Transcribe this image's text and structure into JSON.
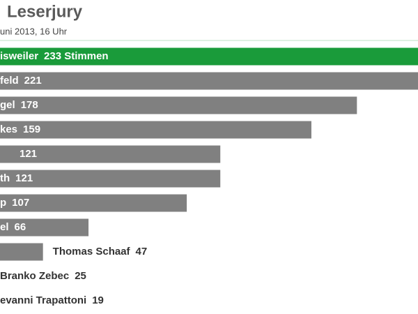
{
  "chart_data": {
    "type": "bar",
    "orientation": "horizontal",
    "title": "Leserjury",
    "subtitle": "uni 2013, 16 Uhr",
    "categories": [
      "isweiler",
      "feld",
      "gel",
      "kes",
      null,
      "th",
      "p",
      "el",
      "Thomas Schaaf",
      "Branko Zebec",
      "evanni Trapattoni"
    ],
    "values": [
      233,
      221,
      178,
      159,
      121,
      121,
      107,
      66,
      47,
      25,
      19
    ],
    "value_labels": [
      "233 Stimmen",
      "221",
      "178",
      "159",
      "121",
      "121",
      "107",
      "66",
      "47",
      "25",
      "19"
    ],
    "colors": [
      "#1a9b3a",
      "#808080",
      "#808080",
      "#808080",
      "#808080",
      "#808080",
      "#808080",
      "#808080",
      "#808080",
      "#808080",
      "#808080"
    ]
  }
}
